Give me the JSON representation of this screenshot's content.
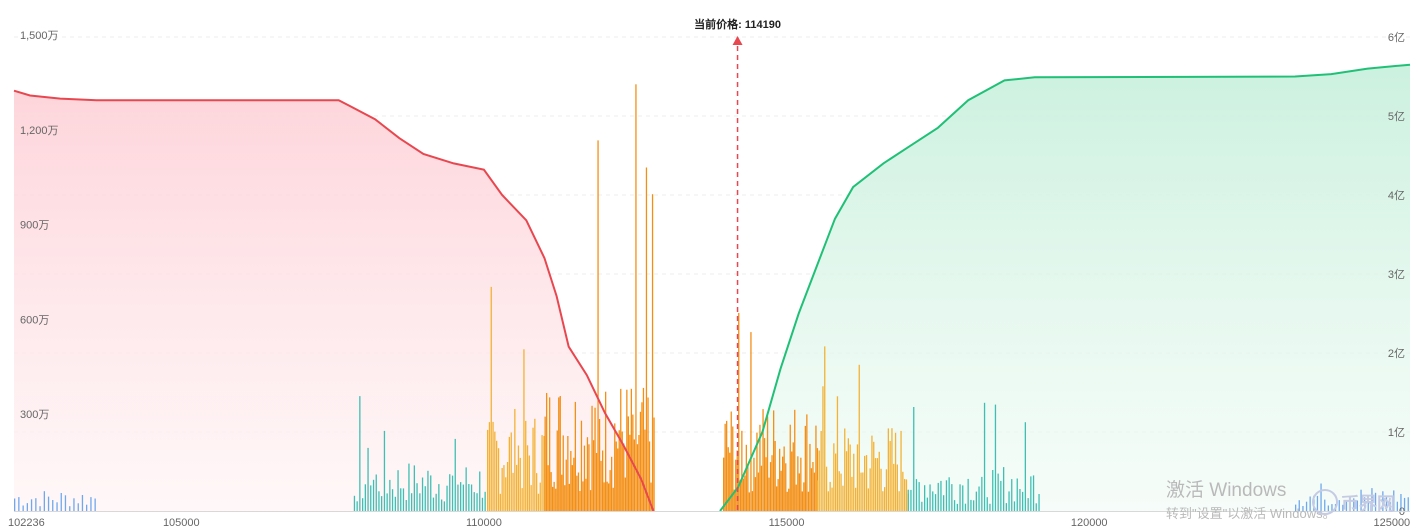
{
  "chart_data": {
    "type": "area",
    "price_label": "当前价格: 114190",
    "current_price": 114190,
    "xlim": [
      102236,
      125300
    ],
    "x_ticks": [
      {
        "value": 102236,
        "label": "102236"
      },
      {
        "value": 105000,
        "label": "105000"
      },
      {
        "value": 110000,
        "label": "110000"
      },
      {
        "value": 115000,
        "label": "115000"
      },
      {
        "value": 120000,
        "label": "120000"
      },
      {
        "value": 125000,
        "label": "125000"
      }
    ],
    "y_left_lim": [
      0,
      15000000
    ],
    "y_left_ticks": [
      {
        "value": 3000000,
        "label": "300万"
      },
      {
        "value": 6000000,
        "label": "600万"
      },
      {
        "value": 9000000,
        "label": "900万"
      },
      {
        "value": 12000000,
        "label": "1,200万"
      },
      {
        "value": 15000000,
        "label": "1,500万"
      }
    ],
    "y_right_lim": [
      0,
      600000000
    ],
    "y_right_ticks": [
      {
        "value": 0,
        "label": "0"
      },
      {
        "value": 100000000,
        "label": "1亿"
      },
      {
        "value": 200000000,
        "label": "2亿"
      },
      {
        "value": 300000000,
        "label": "3亿"
      },
      {
        "value": 400000000,
        "label": "4亿"
      },
      {
        "value": 500000000,
        "label": "5亿"
      },
      {
        "value": 600000000,
        "label": "6亿"
      }
    ],
    "grid": true,
    "series": [
      {
        "axis": "left",
        "color": "#e8474f",
        "points": [
          [
            102236,
            13300000
          ],
          [
            102500,
            13150000
          ],
          [
            103000,
            13050000
          ],
          [
            103600,
            13000000
          ],
          [
            107600,
            13000000
          ],
          [
            107800,
            12800000
          ],
          [
            108200,
            12400000
          ],
          [
            108600,
            11800000
          ],
          [
            109000,
            11300000
          ],
          [
            109500,
            11000000
          ],
          [
            110000,
            10800000
          ],
          [
            110300,
            10000000
          ],
          [
            110700,
            9200000
          ],
          [
            111000,
            8000000
          ],
          [
            111200,
            6800000
          ],
          [
            111400,
            5200000
          ],
          [
            111700,
            4300000
          ],
          [
            112000,
            3100000
          ],
          [
            112300,
            2100000
          ],
          [
            112600,
            1000000
          ],
          [
            112800,
            0
          ]
        ]
      },
      {
        "axis": "right",
        "color": "#20c077",
        "points": [
          [
            113900,
            0
          ],
          [
            114200,
            30000000
          ],
          [
            114600,
            100000000
          ],
          [
            114900,
            180000000
          ],
          [
            115200,
            250000000
          ],
          [
            115500,
            310000000
          ],
          [
            115800,
            370000000
          ],
          [
            116100,
            410000000
          ],
          [
            116600,
            440000000
          ],
          [
            117000,
            460000000
          ],
          [
            117500,
            485000000
          ],
          [
            118000,
            520000000
          ],
          [
            118600,
            545000000
          ],
          [
            119100,
            549000000
          ],
          [
            123400,
            550000000
          ],
          [
            124000,
            553000000
          ],
          [
            124600,
            560000000
          ],
          [
            125300,
            565000000
          ]
        ]
      }
    ],
    "bar_groups": [
      {
        "color": "#6fa8ee",
        "from": 102236,
        "to": 103600,
        "step": 70,
        "base": 700000,
        "peak": 1500000
      },
      {
        "color": "#3fbfb3",
        "from": 107850,
        "to": 110050,
        "step": 45,
        "base": 1600000,
        "peak": 3700000
      },
      {
        "color": "#f3b235",
        "from": 110050,
        "to": 111000,
        "step": 30,
        "base": 3200000,
        "peak": 7400000
      },
      {
        "color": "#f48f16",
        "from": 111000,
        "to": 112800,
        "step": 25,
        "base": 4200000,
        "peak": 14700000
      },
      {
        "color": "#f48f16",
        "from": 113950,
        "to": 115500,
        "step": 25,
        "base": 3500000,
        "peak": 7700000
      },
      {
        "color": "#f3b235",
        "from": 115500,
        "to": 117000,
        "step": 30,
        "base": 2800000,
        "peak": 5800000
      },
      {
        "color": "#3fbfb3",
        "from": 117000,
        "to": 119200,
        "step": 45,
        "base": 1500000,
        "peak": 3700000
      },
      {
        "color": "#6fa8ee",
        "from": 123400,
        "to": 125300,
        "step": 60,
        "base": 800000,
        "peak": 1600000
      }
    ]
  },
  "watermark": {
    "line1": "激活 Windows",
    "line2": "转到\"设置\"以激活 Windows。",
    "logo": "币界网"
  }
}
